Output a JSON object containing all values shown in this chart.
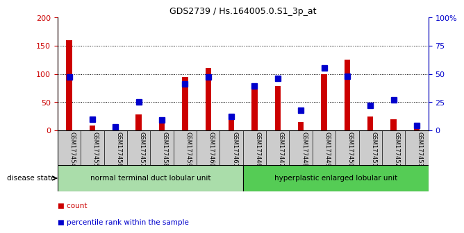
{
  "title": "GDS2739 / Hs.164005.0.S1_3p_at",
  "samples": [
    "GSM177454",
    "GSM177455",
    "GSM177456",
    "GSM177457",
    "GSM177458",
    "GSM177459",
    "GSM177460",
    "GSM177461",
    "GSM177446",
    "GSM177447",
    "GSM177448",
    "GSM177449",
    "GSM177450",
    "GSM177451",
    "GSM177452",
    "GSM177453"
  ],
  "count_values": [
    160,
    8,
    2,
    28,
    14,
    95,
    110,
    20,
    84,
    79,
    15,
    100,
    125,
    25,
    20,
    3
  ],
  "percentile_values": [
    47,
    10,
    3,
    25,
    9,
    41,
    47,
    12,
    39,
    46,
    18,
    55,
    48,
    22,
    27,
    4
  ],
  "group1_label": "normal terminal duct lobular unit",
  "group1_count": 8,
  "group2_label": "hyperplastic enlarged lobular unit",
  "group2_count": 8,
  "disease_state_label": "disease state",
  "ylim_left": [
    0,
    200
  ],
  "ylim_right": [
    0,
    100
  ],
  "yticks_left": [
    0,
    50,
    100,
    150,
    200
  ],
  "yticks_right": [
    0,
    25,
    50,
    75,
    100
  ],
  "ytick_labels_right": [
    "0",
    "25",
    "50",
    "75",
    "100%"
  ],
  "bar_color_count": "#cc0000",
  "bar_color_pct": "#0000cc",
  "group1_bg": "#aaddaa",
  "group2_bg": "#55cc55",
  "xlabel_bg": "#cccccc",
  "bar_width": 0.35,
  "pct_marker_size": 6
}
